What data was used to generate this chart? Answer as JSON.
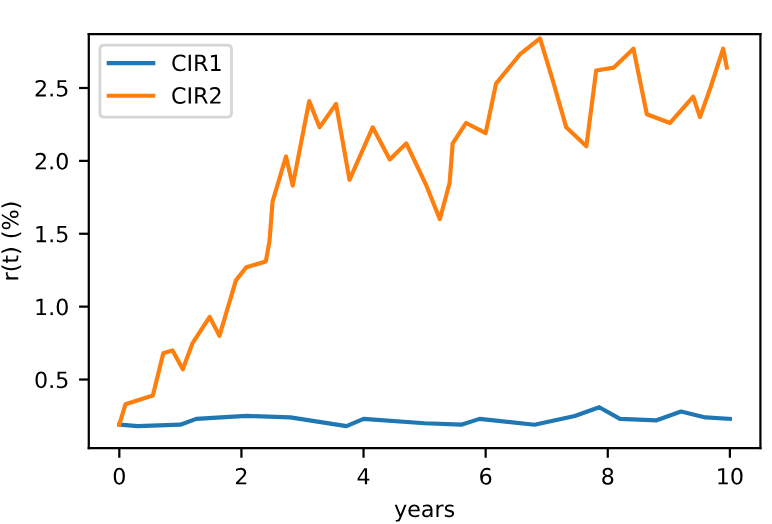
{
  "chart_data": {
    "type": "line",
    "xlabel": "years",
    "ylabel": "r(t) (%)",
    "xlim": [
      -0.5,
      10.5
    ],
    "ylim": [
      0.03,
      2.87
    ],
    "xticks": [
      0,
      2,
      4,
      6,
      8,
      10
    ],
    "yticks": [
      {
        "value": 0.5,
        "label": "0.5"
      },
      {
        "value": 1.0,
        "label": "1.0"
      },
      {
        "value": 1.5,
        "label": "1.5"
      },
      {
        "value": 2.0,
        "label": "2.0"
      },
      {
        "value": 2.5,
        "label": "2.5"
      }
    ],
    "legend": "top left",
    "grid": false,
    "series": [
      {
        "name": "CIR1",
        "color": "#1f77b4",
        "x": [
          0,
          0.3,
          1.0,
          1.26,
          2.08,
          2.8,
          3.72,
          4.0,
          5.0,
          5.6,
          5.9,
          6.8,
          7.46,
          7.86,
          8.2,
          8.8,
          9.2,
          9.6,
          10
        ],
        "values": [
          0.19,
          0.18,
          0.19,
          0.23,
          0.25,
          0.24,
          0.18,
          0.23,
          0.2,
          0.19,
          0.23,
          0.19,
          0.25,
          0.31,
          0.23,
          0.22,
          0.28,
          0.24,
          0.23
        ]
      },
      {
        "name": "CIR2",
        "color": "#ff7f0e",
        "x": [
          0,
          0.1,
          0.55,
          0.72,
          0.87,
          1.04,
          1.2,
          1.48,
          1.64,
          1.91,
          2.08,
          2.4,
          2.46,
          2.51,
          2.73,
          2.84,
          3.11,
          3.28,
          3.55,
          3.77,
          4.15,
          4.43,
          4.7,
          5.03,
          5.25,
          5.41,
          5.46,
          5.68,
          6.0,
          6.17,
          6.56,
          6.89,
          7.1,
          7.32,
          7.65,
          7.81,
          8.1,
          8.42,
          8.64,
          9.02,
          9.4,
          9.51,
          9.68,
          9.89,
          9.95
        ],
        "values": [
          0.19,
          0.33,
          0.39,
          0.68,
          0.7,
          0.57,
          0.75,
          0.93,
          0.8,
          1.18,
          1.27,
          1.31,
          1.45,
          1.72,
          2.03,
          1.83,
          2.41,
          2.23,
          2.39,
          1.87,
          2.23,
          2.01,
          2.12,
          1.83,
          1.6,
          1.85,
          2.12,
          2.26,
          2.19,
          2.53,
          2.73,
          2.84,
          2.55,
          2.23,
          2.1,
          2.62,
          2.64,
          2.77,
          2.32,
          2.26,
          2.44,
          2.3,
          2.5,
          2.77,
          2.64
        ]
      }
    ]
  }
}
